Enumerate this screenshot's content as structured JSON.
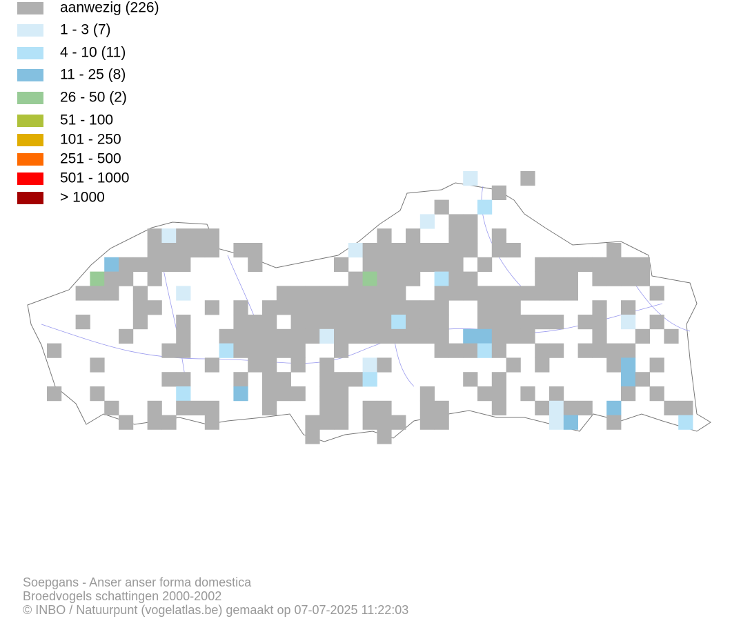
{
  "legend": [
    {
      "label": "aanwezig (226)",
      "color": "#b0b0b0"
    },
    {
      "label": "1 - 3 (7)",
      "color": "#d6ecf8"
    },
    {
      "label": "4 - 10 (11)",
      "color": "#b3e2f8"
    },
    {
      "label": "11 - 25 (8)",
      "color": "#84c0e0"
    },
    {
      "label": "26 - 50 (2)",
      "color": "#98cb96"
    },
    {
      "label": "51 - 100",
      "color": "#aec13a"
    },
    {
      "label": "101 - 250",
      "color": "#e0ad00"
    },
    {
      "label": "251 - 500",
      "color": "#ff6a00"
    },
    {
      "label": "501 - 1000",
      "color": "#ff0000"
    },
    {
      "label": "> 1000",
      "color": "#a30000"
    }
  ],
  "footer": {
    "title": "Soepgans - Anser anser forma domestica",
    "subtitle": "Broedvogels schattingen 2000-2002",
    "credit": "© INBO / Natuurpunt (vogelatlas.be) gemaakt op 07-07-2025 11:22:03"
  }
}
